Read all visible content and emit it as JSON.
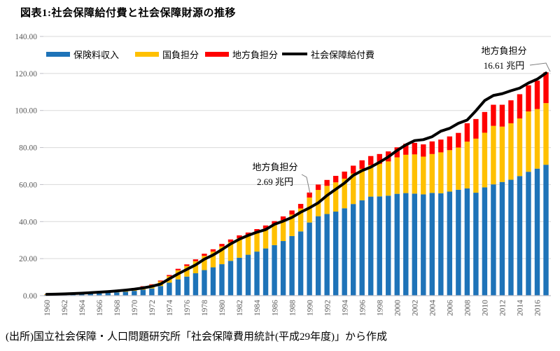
{
  "title": "図表1:社会保障給付費と社会保障財源の推移",
  "source_note": "(出所)国立社会保障・人口問題研究所「社会保障費用統計(平成29年度)」から作成",
  "colors": {
    "premium_blue": "#1E73B8",
    "national_gold": "#FFC000",
    "local_red": "#FF0000",
    "benefits_black": "#000000",
    "gridline": "#D9D9D9",
    "axis": "#BFBFC7",
    "tick_text": "#595959",
    "annotation_line": "#7F7F7F"
  },
  "chart_data": {
    "type": "bar",
    "subtype": "stacked-bars-with-line-overlay",
    "unit": "兆円",
    "x": [
      1960,
      1961,
      1962,
      1963,
      1964,
      1965,
      1966,
      1967,
      1968,
      1969,
      1970,
      1971,
      1972,
      1973,
      1974,
      1975,
      1976,
      1977,
      1978,
      1979,
      1980,
      1981,
      1982,
      1983,
      1984,
      1985,
      1986,
      1987,
      1988,
      1989,
      1990,
      1991,
      1992,
      1993,
      1994,
      1995,
      1996,
      1997,
      1998,
      1999,
      2000,
      2001,
      2002,
      2003,
      2004,
      2005,
      2006,
      2007,
      2008,
      2009,
      2010,
      2011,
      2012,
      2013,
      2014,
      2015,
      2016,
      2017
    ],
    "xtick_labels": [
      "1960",
      "1962",
      "1964",
      "1966",
      "1968",
      "1970",
      "1972",
      "1974",
      "1976",
      "1978",
      "1980",
      "1982",
      "1984",
      "1986",
      "1988",
      "1990",
      "1992",
      "1994",
      "1996",
      "1998",
      "2000",
      "2002",
      "2004",
      "2006",
      "2008",
      "2010",
      "2012",
      "2014",
      "2016"
    ],
    "ylim": [
      0,
      140
    ],
    "ytick_step": 20,
    "ytick_labels": [
      "0.00",
      "20.00",
      "40.00",
      "60.00",
      "80.00",
      "100.00",
      "120.00",
      "140.00"
    ],
    "grid": "horizontal",
    "legend_position": "top-left",
    "series": [
      {
        "name": "保険料収入",
        "type": "bar",
        "color": "#1E73B8",
        "values": [
          0.4,
          0.5,
          0.6,
          0.7,
          0.9,
          1.1,
          1.3,
          1.5,
          1.8,
          2.1,
          2.6,
          3.2,
          3.9,
          5.2,
          7.0,
          8.8,
          10.3,
          12.1,
          13.8,
          15.3,
          17.0,
          18.8,
          20.5,
          22.1,
          23.8,
          25.5,
          27.3,
          29.5,
          32.2,
          34.7,
          39.5,
          42.9,
          44.1,
          45.4,
          47.2,
          49.5,
          51.5,
          53.5,
          53.6,
          54.0,
          55.0,
          55.4,
          55.1,
          54.7,
          55.5,
          55.3,
          56.2,
          57.2,
          57.9,
          55.6,
          58.5,
          60.1,
          61.4,
          62.6,
          64.6,
          66.9,
          68.6,
          70.7
        ]
      },
      {
        "name": "国負担分",
        "type": "bar",
        "color": "#FFC000",
        "values": [
          0.25,
          0.3,
          0.36,
          0.43,
          0.5,
          0.6,
          0.73,
          0.83,
          0.96,
          1.1,
          1.3,
          1.6,
          1.9,
          2.5,
          3.5,
          4.9,
          5.7,
          6.5,
          7.7,
          8.5,
          9.6,
          10.1,
          10.5,
          10.4,
          10.5,
          10.7,
          11.1,
          11.3,
          11.6,
          12.4,
          13.5,
          14.2,
          15.2,
          15.8,
          16.0,
          16.5,
          17.0,
          17.0,
          17.6,
          18.5,
          19.7,
          20.7,
          21.2,
          20.4,
          21.0,
          22.1,
          22.4,
          22.8,
          25.3,
          29.2,
          29.5,
          31.6,
          29.9,
          30.5,
          31.1,
          32.6,
          32.2,
          33.3
        ]
      },
      {
        "name": "地方負担分",
        "type": "bar",
        "color": "#FF0000",
        "values": [
          0.04,
          0.05,
          0.06,
          0.07,
          0.09,
          0.11,
          0.13,
          0.15,
          0.18,
          0.21,
          0.25,
          0.3,
          0.36,
          0.47,
          0.65,
          0.8,
          0.9,
          1.0,
          1.15,
          1.25,
          1.35,
          1.45,
          1.55,
          1.6,
          1.65,
          1.7,
          1.85,
          2.0,
          2.2,
          2.45,
          2.69,
          2.9,
          3.2,
          3.5,
          3.8,
          4.2,
          4.6,
          4.9,
          5.3,
          5.4,
          5.4,
          5.9,
          6.2,
          6.6,
          6.8,
          6.9,
          7.4,
          7.9,
          9.9,
          10.6,
          11.2,
          11.4,
          11.8,
          12.4,
          13.1,
          14.1,
          15.3,
          16.61
        ]
      },
      {
        "name": "社会保障給付費",
        "type": "line",
        "color": "#000000",
        "values": [
          0.7,
          0.82,
          0.95,
          1.13,
          1.34,
          1.6,
          1.89,
          2.19,
          2.55,
          3.0,
          3.52,
          4.17,
          5.03,
          6.26,
          9.13,
          11.77,
          14.2,
          16.6,
          19.71,
          21.97,
          24.88,
          27.97,
          30.52,
          32.54,
          34.27,
          35.68,
          38.53,
          40.27,
          42.25,
          45.07,
          47.41,
          50.14,
          54.12,
          57.48,
          60.84,
          64.97,
          67.55,
          69.42,
          72.07,
          74.95,
          78.4,
          81.44,
          83.74,
          84.26,
          85.86,
          88.85,
          90.36,
          93.07,
          94.85,
          99.85,
          105.37,
          108.13,
          109.07,
          110.67,
          112.1,
          114.86,
          116.93,
          120.22
        ]
      }
    ],
    "annotations": [
      {
        "label": "地方負担分",
        "value_label": "2.69 兆円",
        "year": 1990
      },
      {
        "label": "地方負担分",
        "value_label": "16.61 兆円",
        "year": 2017
      }
    ]
  }
}
